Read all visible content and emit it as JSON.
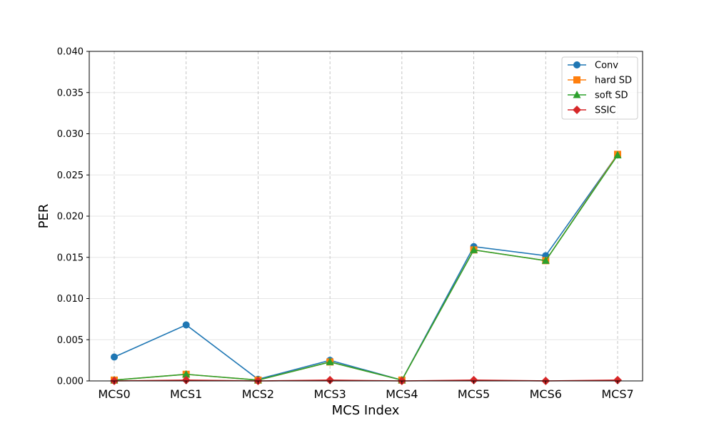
{
  "chart_data": {
    "type": "line",
    "xlabel": "MCS Index",
    "ylabel": "PER",
    "categories": [
      "MCS0",
      "MCS1",
      "MCS2",
      "MCS3",
      "MCS4",
      "MCS5",
      "MCS6",
      "MCS7"
    ],
    "ylim": [
      0,
      0.04
    ],
    "yticks": [
      "0.000",
      "0.005",
      "0.010",
      "0.015",
      "0.020",
      "0.025",
      "0.030",
      "0.035",
      "0.040"
    ],
    "grid": true,
    "legend_position": "top-right",
    "series": [
      {
        "name": "Conv",
        "color": "#1f77b4",
        "marker": "circle",
        "values": [
          0.0029,
          0.0068,
          0.0002,
          0.0025,
          0.0001,
          0.0163,
          0.0152,
          0.0275
        ]
      },
      {
        "name": "hard SD",
        "color": "#ff7f0e",
        "marker": "square",
        "values": [
          0.0001,
          0.0008,
          0.0001,
          0.0023,
          0.0001,
          0.0159,
          0.0146,
          0.0275
        ]
      },
      {
        "name": "soft SD",
        "color": "#2ca02c",
        "marker": "triangle",
        "values": [
          0.0001,
          0.0008,
          0.0001,
          0.0023,
          0.0001,
          0.0159,
          0.0146,
          0.0274
        ]
      },
      {
        "name": "SSIC",
        "color": "#d62728",
        "marker": "diamond",
        "values": [
          0.0,
          0.0001,
          0.0,
          0.0001,
          0.0,
          0.0001,
          0.0,
          0.0001
        ]
      }
    ]
  }
}
